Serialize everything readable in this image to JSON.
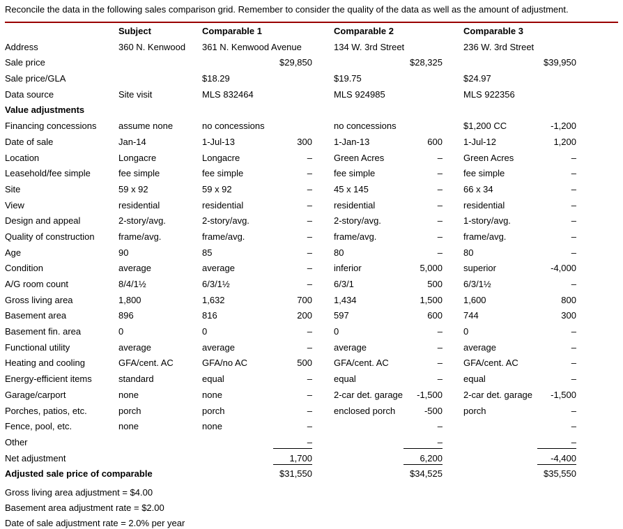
{
  "title": "Reconcile the data in the following sales comparison grid. Remember to consider the quality of the data as well as the amount of adjustment.",
  "accent_color": "#990000",
  "table": {
    "columns": [
      "Subject",
      "Comparable 1",
      "Comparable 2",
      "Comparable 3"
    ],
    "rows": [
      {
        "label": "Address",
        "subject": "360 N. Kenwood",
        "c1": "361 N. Kenwood Avenue",
        "c1adj": "",
        "c2": "134 W. 3rd Street",
        "c2adj": "",
        "c3": "236 W. 3rd Street",
        "c3adj": ""
      },
      {
        "label": "Sale price",
        "subject": "",
        "c1": "",
        "c1adj": "$29,850",
        "c2": "",
        "c2adj": "$28,325",
        "c3": "",
        "c3adj": "$39,950"
      },
      {
        "label": "Sale price/GLA",
        "subject": "",
        "c1": "$18.29",
        "c1adj": "",
        "c2": "$19.75",
        "c2adj": "",
        "c3": "$24.97",
        "c3adj": ""
      },
      {
        "label": "Data source",
        "subject": "Site visit",
        "c1": "MLS 832464",
        "c1adj": "",
        "c2": "MLS 924985",
        "c2adj": "",
        "c3": "MLS 922356",
        "c3adj": ""
      },
      {
        "label": "Value adjustments",
        "subject": "",
        "c1": "",
        "c1adj": "",
        "c2": "",
        "c2adj": "",
        "c3": "",
        "c3adj": "",
        "bold": true
      },
      {
        "label": "Financing concessions",
        "subject": "assume none",
        "c1": "no concessions",
        "c1adj": "",
        "c2": "no concessions",
        "c2adj": "",
        "c3": "$1,200 CC",
        "c3adj": "-1,200"
      },
      {
        "label": "Date of sale",
        "subject": "Jan-14",
        "c1": "1-Jul-13",
        "c1adj": "300",
        "c2": "1-Jan-13",
        "c2adj": "600",
        "c3": "1-Jul-12",
        "c3adj": "1,200"
      },
      {
        "label": "Location",
        "subject": "Longacre",
        "c1": "Longacre",
        "c1adj": "–",
        "c2": "Green Acres",
        "c2adj": "–",
        "c3": "Green Acres",
        "c3adj": "–"
      },
      {
        "label": "Leasehold/fee simple",
        "subject": "fee simple",
        "c1": "fee simple",
        "c1adj": "–",
        "c2": "fee simple",
        "c2adj": "–",
        "c3": "fee simple",
        "c3adj": "–"
      },
      {
        "label": "Site",
        "subject": "59 x 92",
        "c1": "59 x 92",
        "c1adj": "–",
        "c2": "45 x 145",
        "c2adj": "–",
        "c3": "66 x 34",
        "c3adj": "–"
      },
      {
        "label": "View",
        "subject": "residential",
        "c1": "residential",
        "c1adj": "–",
        "c2": "residential",
        "c2adj": "–",
        "c3": "residential",
        "c3adj": "–"
      },
      {
        "label": "Design and appeal",
        "subject": "2-story/avg.",
        "c1": "2-story/avg.",
        "c1adj": "–",
        "c2": "2-story/avg.",
        "c2adj": "–",
        "c3": "1-story/avg.",
        "c3adj": "–"
      },
      {
        "label": "Quality of construction",
        "subject": "frame/avg.",
        "c1": "frame/avg.",
        "c1adj": "–",
        "c2": "frame/avg.",
        "c2adj": "–",
        "c3": "frame/avg.",
        "c3adj": "–"
      },
      {
        "label": "Age",
        "subject": "90",
        "c1": "85",
        "c1adj": "–",
        "c2": "80",
        "c2adj": "–",
        "c3": "80",
        "c3adj": "–"
      },
      {
        "label": "Condition",
        "subject": "average",
        "c1": "average",
        "c1adj": "–",
        "c2": "inferior",
        "c2adj": "5,000",
        "c3": "superior",
        "c3adj": "-4,000"
      },
      {
        "label": "A/G room count",
        "subject": "8/4/1½",
        "c1": "6/3/1½",
        "c1adj": "–",
        "c2": "6/3/1",
        "c2adj": "500",
        "c3": "6/3/1½",
        "c3adj": "–"
      },
      {
        "label": "Gross living area",
        "subject": "1,800",
        "c1": "1,632",
        "c1adj": "700",
        "c2": "1,434",
        "c2adj": "1,500",
        "c3": "1,600",
        "c3adj": "800"
      },
      {
        "label": "Basement area",
        "subject": "896",
        "c1": "816",
        "c1adj": "200",
        "c2": "597",
        "c2adj": "600",
        "c3": "744",
        "c3adj": "300"
      },
      {
        "label": "Basement fin. area",
        "subject": "0",
        "c1": "0",
        "c1adj": "–",
        "c2": "0",
        "c2adj": "–",
        "c3": "0",
        "c3adj": "–"
      },
      {
        "label": "Functional utility",
        "subject": "average",
        "c1": "average",
        "c1adj": "–",
        "c2": "average",
        "c2adj": "–",
        "c3": "average",
        "c3adj": "–"
      },
      {
        "label": "Heating and cooling",
        "subject": "GFA/cent. AC",
        "c1": "GFA/no AC",
        "c1adj": "500",
        "c2": "GFA/cent. AC",
        "c2adj": "–",
        "c3": "GFA/cent. AC",
        "c3adj": "–"
      },
      {
        "label": "Energy-efficient items",
        "subject": "standard",
        "c1": "equal",
        "c1adj": "–",
        "c2": "equal",
        "c2adj": "–",
        "c3": "equal",
        "c3adj": "–"
      },
      {
        "label": "Garage/carport",
        "subject": "none",
        "c1": "none",
        "c1adj": "–",
        "c2": "2-car det. garage",
        "c2adj": "-1,500",
        "c3": "2-car det. garage",
        "c3adj": "-1,500"
      },
      {
        "label": "Porches, patios, etc.",
        "subject": "porch",
        "c1": "porch",
        "c1adj": "–",
        "c2": "enclosed porch",
        "c2adj": "-500",
        "c3": "porch",
        "c3adj": "–"
      },
      {
        "label": "Fence, pool, etc.",
        "subject": "none",
        "c1": "none",
        "c1adj": "–",
        "c2": "",
        "c2adj": "–",
        "c3": "",
        "c3adj": "–"
      },
      {
        "label": "Other",
        "subject": "",
        "c1": "",
        "c1adj": "–",
        "c2": "",
        "c2adj": "–",
        "c3": "",
        "c3adj": "–",
        "rule": true
      },
      {
        "label": "Net adjustment",
        "subject": "",
        "c1": "",
        "c1adj": "1,700",
        "c2": "",
        "c2adj": "6,200",
        "c3": "",
        "c3adj": "-4,400",
        "rule": true
      },
      {
        "label": "Adjusted sale price of comparable",
        "subject": "",
        "c1": "",
        "c1adj": "$31,550",
        "c2": "",
        "c2adj": "$34,525",
        "c3": "",
        "c3adj": "$35,550",
        "bold": true
      }
    ]
  },
  "footnotes": [
    "Gross living area adjustment = $4.00",
    "Basement area adjustment rate = $2.00",
    "Date of sale adjustment rate = 2.0% per year"
  ]
}
